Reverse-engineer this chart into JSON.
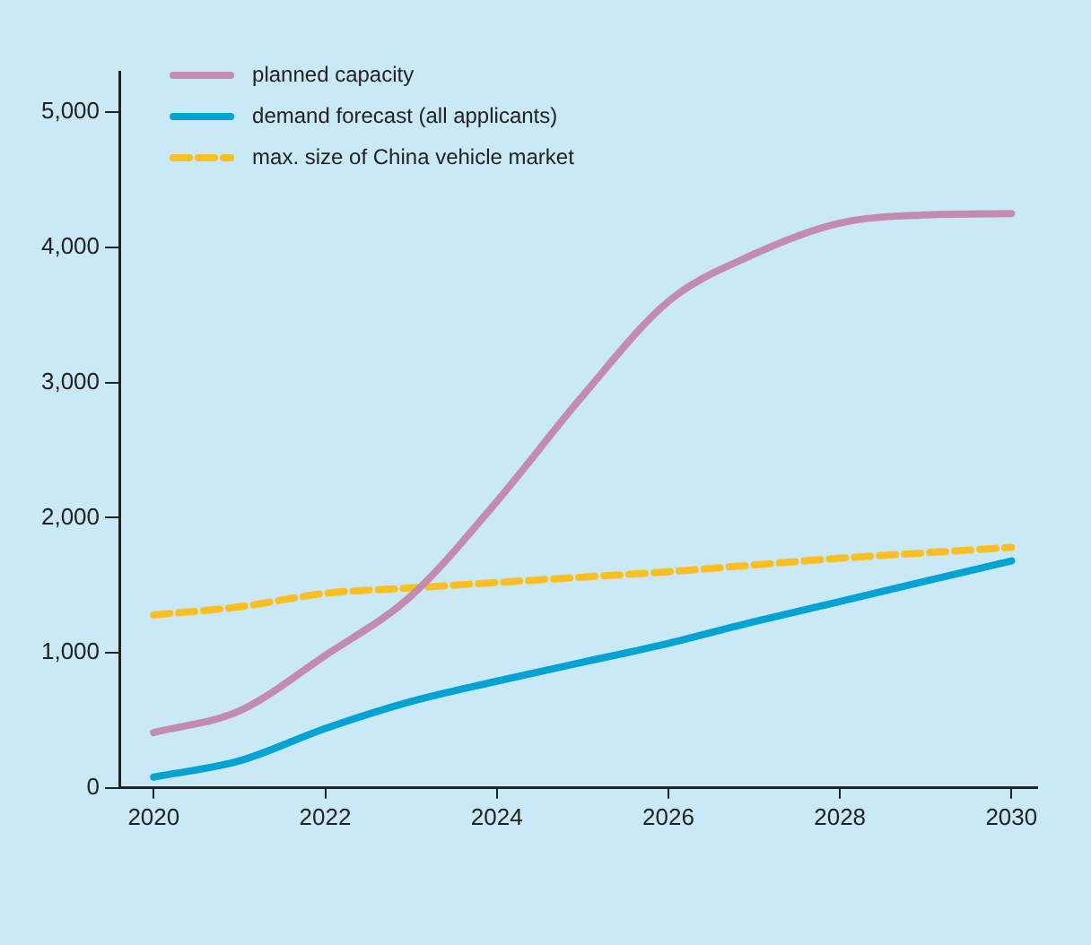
{
  "chart_data": {
    "type": "line",
    "x": [
      2020,
      2021,
      2022,
      2023,
      2024,
      2025,
      2026,
      2027,
      2028,
      2029,
      2030
    ],
    "series": [
      {
        "name": "planned capacity",
        "color": "#c48bb0",
        "line_style": "solid",
        "values": [
          410,
          570,
          980,
          1420,
          2120,
          2900,
          3600,
          3950,
          4180,
          4240,
          4250
        ]
      },
      {
        "name": "demand forecast (all applicants)",
        "color": "#00a3d3",
        "line_style": "solid",
        "values": [
          80,
          200,
          440,
          640,
          790,
          930,
          1070,
          1230,
          1380,
          1530,
          1680
        ]
      },
      {
        "name": "max. size of China vehicle market",
        "color": "#fbbf24",
        "line_style": "dashed",
        "values": [
          1280,
          1340,
          1440,
          1480,
          1520,
          1560,
          1600,
          1650,
          1700,
          1740,
          1780
        ]
      }
    ],
    "xlim": [
      2019.6,
      2030.3
    ],
    "xticks": [
      2020,
      2022,
      2024,
      2026,
      2028,
      2030
    ],
    "ylim": [
      0,
      5300
    ],
    "yticks": [
      0,
      {
        "value": 1000,
        "label": "1,000"
      },
      {
        "value": 2000,
        "label": "2,000"
      },
      {
        "value": 3000,
        "label": "3,000"
      },
      {
        "value": 4000,
        "label": "4,000"
      },
      {
        "value": 5000,
        "label": "5,000"
      }
    ],
    "grid": false,
    "legend": "top left",
    "marker": "none"
  }
}
